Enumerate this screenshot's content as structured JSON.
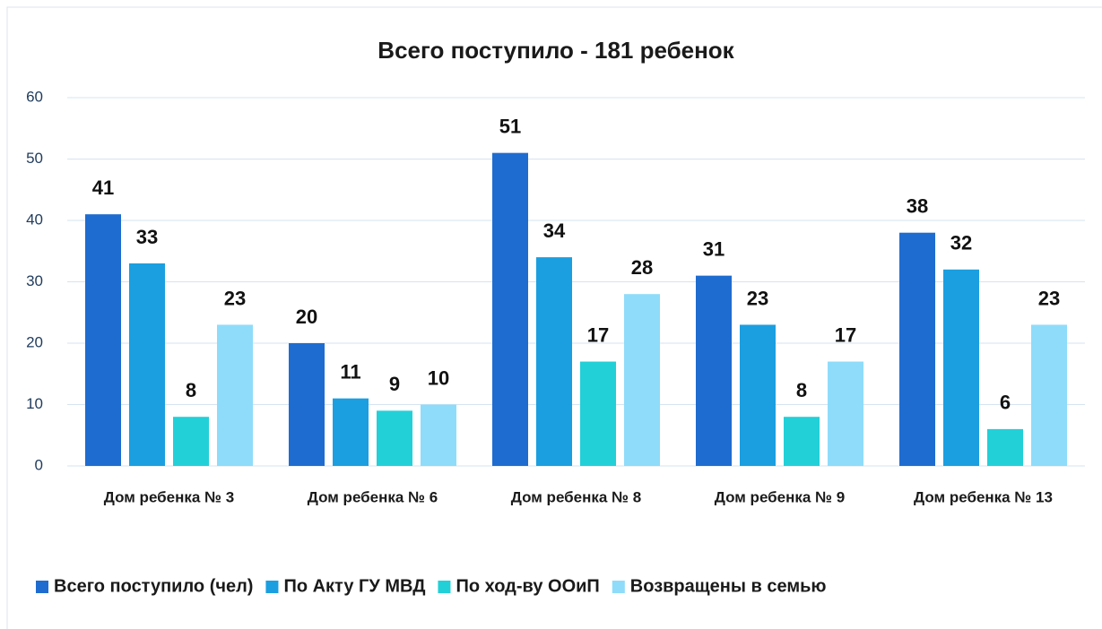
{
  "chart_data": {
    "type": "bar",
    "title": "Всего поступило - 181 ребенок",
    "categories": [
      "Дом ребенка № 3",
      "Дом ребенка № 6",
      "Дом ребенка № 8",
      "Дом ребенка № 9",
      "Дом ребенка № 13"
    ],
    "series": [
      {
        "name": "Всего поступило (чел)",
        "color": "#1f6cd0",
        "values": [
          41,
          20,
          51,
          31,
          38
        ]
      },
      {
        "name": "По Акту ГУ МВД",
        "color": "#1b9fe0",
        "values": [
          33,
          11,
          34,
          23,
          32
        ]
      },
      {
        "name": "По ход-ву ООиП",
        "color": "#22d0d8",
        "values": [
          8,
          9,
          17,
          8,
          6
        ]
      },
      {
        "name": "Возвращены в семью",
        "color": "#8edcfa",
        "values": [
          23,
          10,
          28,
          17,
          23
        ]
      }
    ],
    "ylim": [
      0,
      60
    ],
    "yticks": [
      0,
      10,
      20,
      30,
      40,
      50,
      60
    ],
    "grid": true,
    "legend": "bottom"
  }
}
